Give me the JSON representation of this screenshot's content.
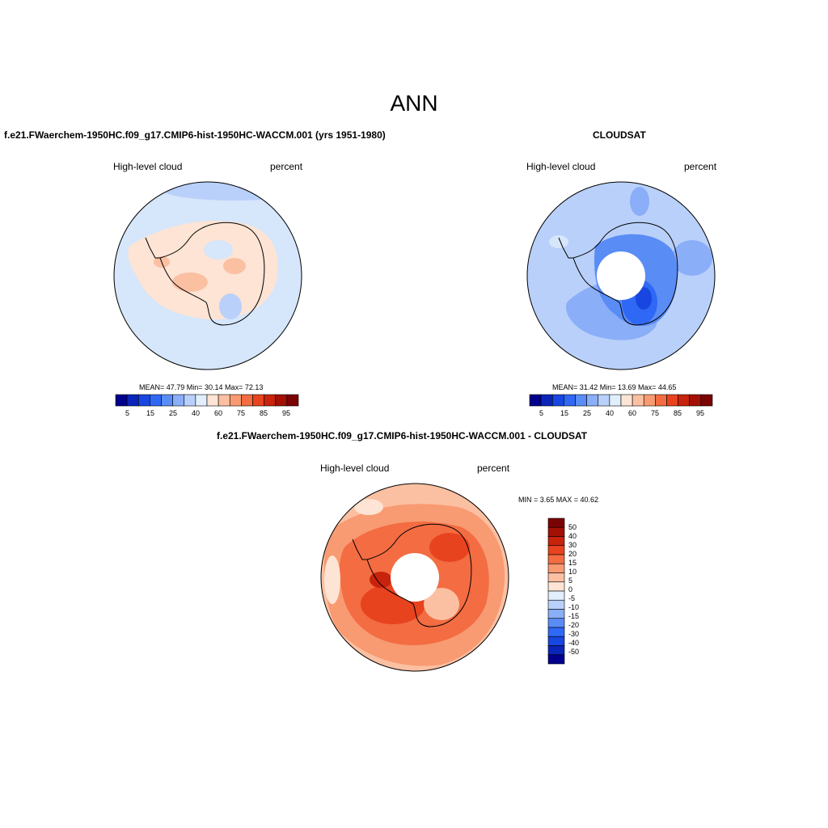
{
  "main_title": "ANN",
  "panels": {
    "model": {
      "title": "f.e21.FWaerchem-1950HC.f09_g17.CMIP6-hist-1950HC-WACCM.001 (yrs 1951-1980)",
      "left_label": "High-level cloud",
      "right_label": "percent",
      "stats": "MEAN=  47.79  Min=  30.14  Max=  72.13",
      "colorbar_ticks": [
        "5",
        "15",
        "25",
        "40",
        "60",
        "75",
        "85",
        "95"
      ]
    },
    "obs": {
      "title": "CLOUDSAT",
      "left_label": "High-level cloud",
      "right_label": "percent",
      "stats": "MEAN=  31.42  Min=  13.69  Max=  44.65",
      "colorbar_ticks": [
        "5",
        "15",
        "25",
        "40",
        "60",
        "75",
        "85",
        "95"
      ]
    },
    "diff": {
      "title": "f.e21.FWaerchem-1950HC.f09_g17.CMIP6-hist-1950HC-WACCM.001 - CLOUDSAT",
      "left_label": "High-level cloud",
      "right_label": "percent",
      "stats": "MIN =   3.65 MAX =  40.62",
      "colorbar_ticks": [
        "50",
        "40",
        "30",
        "20",
        "15",
        "10",
        "5",
        "0",
        "-5",
        "-10",
        "-15",
        "-20",
        "-30",
        "-40",
        "-50"
      ]
    }
  },
  "colors": {
    "abs_colorbar": [
      "#00008c",
      "#0a25b8",
      "#1846e0",
      "#2f68f5",
      "#5a8cf6",
      "#8aaef7",
      "#b9d0fa",
      "#e1eefc",
      "#fde4d4",
      "#fbc0a2",
      "#f89a72",
      "#f36c42",
      "#e8431f",
      "#c8230c",
      "#a21006",
      "#7a0303"
    ],
    "diff_colorbar": [
      "#7a0303",
      "#a21006",
      "#c8230c",
      "#e8431f",
      "#f36c42",
      "#f89a72",
      "#fbc0a2",
      "#fde4d4",
      "#e1eefc",
      "#b9d0fa",
      "#8aaef7",
      "#5a8cf6",
      "#2f68f5",
      "#1846e0",
      "#0a25b8",
      "#00008c"
    ],
    "land_outline": "#000000"
  }
}
